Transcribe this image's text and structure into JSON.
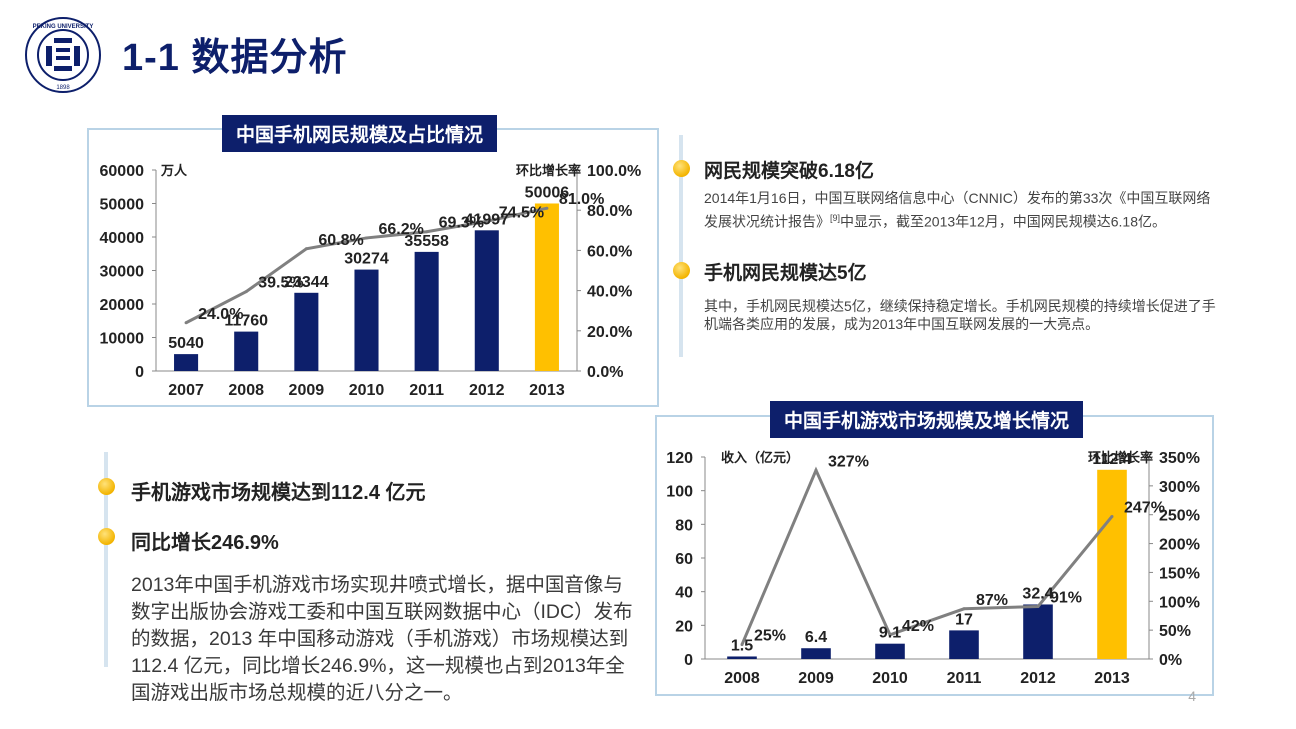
{
  "header": {
    "title": "1-1 数据分析",
    "logo_text": "PEKING UNIVERSITY",
    "logo_year": "1898"
  },
  "chart1": {
    "title": "中国手机网民规模及占比情况",
    "unit_left": "万人",
    "unit_right": "环比增长率"
  },
  "chart2": {
    "title": "中国手机游戏市场规模及增长情况",
    "unit_left": "收入（亿元）",
    "unit_right": "环比增长率"
  },
  "chart_data": [
    {
      "type": "bar",
      "title": "中国手机网民规模及占比情况",
      "categories": [
        "2007",
        "2008",
        "2009",
        "2010",
        "2011",
        "2012",
        "2013"
      ],
      "series": [
        {
          "kind": "bar",
          "axis": "left",
          "values": [
            5040,
            11760,
            23344,
            30274,
            35558,
            41997,
            50006
          ],
          "labels": [
            "5040",
            "11760",
            "23344",
            "30274",
            "35558",
            "41997",
            "50006"
          ],
          "colors": [
            "#0d1f6b",
            "#0d1f6b",
            "#0d1f6b",
            "#0d1f6b",
            "#0d1f6b",
            "#0d1f6b",
            "#ffc000"
          ]
        },
        {
          "kind": "line",
          "axis": "right",
          "values": [
            24.0,
            39.5,
            60.8,
            66.2,
            69.3,
            74.5,
            81.0
          ],
          "labels": [
            "24.0%",
            "39.5%",
            "60.8%",
            "66.2%",
            "69.3%",
            "74.5%",
            "81.0%"
          ],
          "color": "#808080"
        }
      ],
      "ylabel": "万人",
      "y2label": "环比增长率",
      "ylim": [
        0,
        60000
      ],
      "yticks": [
        "0",
        "10000",
        "20000",
        "30000",
        "40000",
        "50000",
        "60000"
      ],
      "y2lim": [
        0,
        100
      ],
      "y2ticks": [
        "0.0%",
        "20.0%",
        "40.0%",
        "60.0%",
        "80.0%",
        "100.0%"
      ]
    },
    {
      "type": "bar",
      "title": "中国手机游戏市场规模及增长情况",
      "categories": [
        "2008",
        "2009",
        "2010",
        "2011",
        "2012",
        "2013"
      ],
      "series": [
        {
          "kind": "bar",
          "axis": "left",
          "values": [
            1.5,
            6.4,
            9.1,
            17,
            32.4,
            112.4
          ],
          "labels": [
            "1.5",
            "6.4",
            "9.1",
            "17",
            "32.4",
            "112.4"
          ],
          "colors": [
            "#0d1f6b",
            "#0d1f6b",
            "#0d1f6b",
            "#0d1f6b",
            "#0d1f6b",
            "#ffc000"
          ]
        },
        {
          "kind": "line",
          "axis": "right",
          "values": [
            25,
            327,
            42,
            87,
            91,
            247
          ],
          "labels": [
            "25%",
            "327%",
            "42%",
            "87%",
            "91%",
            "247%"
          ],
          "color": "#808080"
        }
      ],
      "ylabel": "收入（亿元）",
      "y2label": "环比增长率",
      "ylim": [
        0,
        120
      ],
      "yticks": [
        "0",
        "20",
        "40",
        "60",
        "80",
        "100",
        "120"
      ],
      "y2lim": [
        0,
        350
      ],
      "y2ticks": [
        "0%",
        "50%",
        "100%",
        "150%",
        "200%",
        "250%",
        "300%",
        "350%"
      ]
    }
  ],
  "right_panel": {
    "item1_title": "网民规模突破6.18亿",
    "item1_text": "2014年1月16日，中国互联网络信息中心（CNNIC）发布的第33次《中国互联网络发展状况统计报告》",
    "item1_ref": "[9]",
    "item1_text2": "中显示，截至2013年12月，中国网民规模达6.18亿。",
    "item2_title": "手机网民规模达5亿",
    "item2_text": "其中，手机网民规模达5亿，继续保持稳定增长。手机网民规模的持续增长促进了手机端各类应用的发展，成为2013年中国互联网发展的一大亮点。"
  },
  "left_panel": {
    "item1_title": "手机游戏市场规模达到112.4 亿元",
    "item2_title": "同比增长246.9%",
    "paragraph": "2013年中国手机游戏市场实现井喷式增长，据中国音像与数字出版协会游戏工委和中国互联网数据中心（IDC）发布的数据，2013 年中国移动游戏（手机游戏）市场规模达到112.4 亿元，同比增长246.9%，这一规模也占到2013年全国游戏出版市场总规模的近八分之一。"
  },
  "page_number": "4"
}
